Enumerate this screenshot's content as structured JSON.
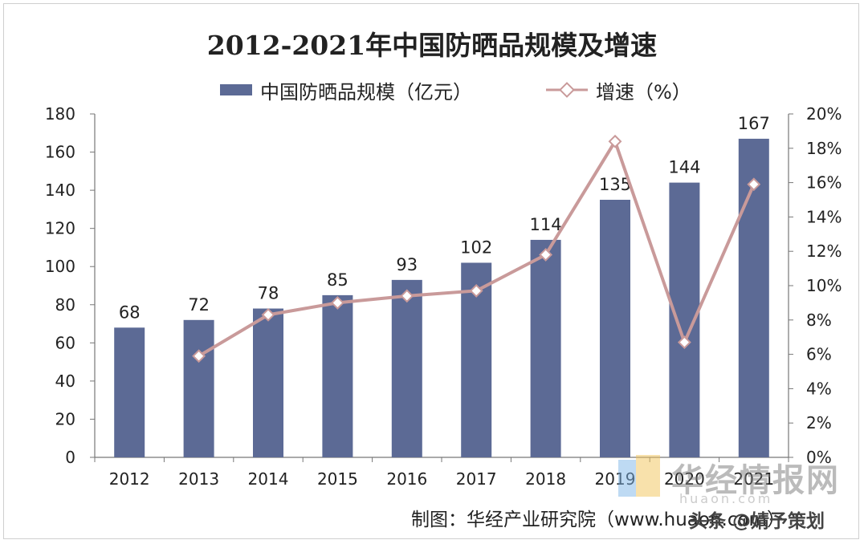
{
  "chart_data": {
    "type": "bar",
    "title": "2012-2021年中国防晒品规模及增速",
    "categories": [
      "2012",
      "2013",
      "2014",
      "2015",
      "2016",
      "2017",
      "2018",
      "2019",
      "2020",
      "2021"
    ],
    "series": [
      {
        "name": "中国防晒品规模（亿元）",
        "type": "bar",
        "axis": "left",
        "color": "#5c6a95",
        "values": [
          68,
          72,
          78,
          85,
          93,
          102,
          114,
          135,
          144,
          167
        ]
      },
      {
        "name": "增速（%）",
        "type": "line",
        "axis": "right",
        "color": "#c99a9a",
        "values": [
          null,
          5.9,
          8.3,
          9.0,
          9.4,
          9.7,
          11.8,
          18.4,
          6.7,
          15.9
        ]
      }
    ],
    "y_left": {
      "min": 0,
      "max": 180,
      "ticks": [
        0,
        20,
        40,
        60,
        80,
        100,
        120,
        140,
        160,
        180
      ]
    },
    "y_right": {
      "min": 0,
      "max": 20,
      "ticks": [
        "0%",
        "2%",
        "4%",
        "6%",
        "8%",
        "10%",
        "12%",
        "14%",
        "16%",
        "18%",
        "20%"
      ]
    },
    "grid": false,
    "legend_position": "top"
  },
  "legend": {
    "bar_label": "中国防晒品规模（亿元）",
    "line_label": "增速（%）"
  },
  "source": {
    "text": "制图：华经产业研究院（www.huaon.com）"
  },
  "watermark": {
    "text": "华经情报网",
    "url": "huaon.com"
  },
  "credit": {
    "text": "头条 @婧予策划"
  }
}
